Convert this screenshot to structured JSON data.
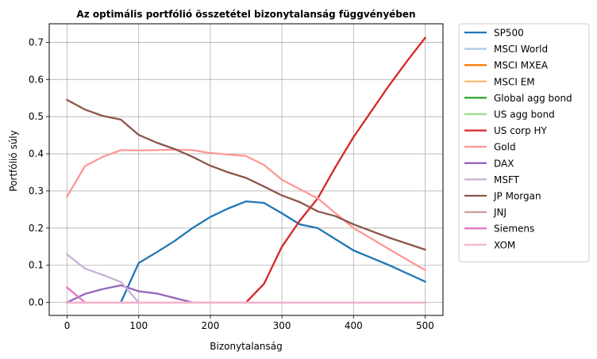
{
  "chart_data": {
    "type": "line",
    "title": "Az optimális portfólió összetétel bizonytalanság függvényében",
    "xlabel": "Bizonytalanság",
    "ylabel": "Portfólió súly",
    "xlim": [
      -25,
      525
    ],
    "ylim": [
      -0.035,
      0.75
    ],
    "xticks": [
      0,
      100,
      200,
      300,
      400,
      500
    ],
    "xtick_labels": [
      "0",
      "100",
      "200",
      "300",
      "400",
      "500"
    ],
    "yticks": [
      0.0,
      0.1,
      0.2,
      0.3,
      0.4,
      0.5,
      0.6,
      0.7
    ],
    "ytick_labels": [
      "0.0",
      "0.1",
      "0.2",
      "0.3",
      "0.4",
      "0.5",
      "0.6",
      "0.7"
    ],
    "grid": true,
    "legend_position": "outside-right",
    "x": [
      0,
      25,
      50,
      75,
      100,
      125,
      150,
      175,
      200,
      225,
      250,
      275,
      300,
      325,
      350,
      375,
      400,
      425,
      450,
      475,
      500
    ],
    "series": [
      {
        "name": "SP500",
        "color": "#1f77b4",
        "values": [
          0,
          0,
          0,
          0,
          0.106,
          0.135,
          0.165,
          0.2,
          0.23,
          0.253,
          0.272,
          0.268,
          0.24,
          0.21,
          0.2,
          0.17,
          0.14,
          0.12,
          0.1,
          0.078,
          0.056
        ]
      },
      {
        "name": "MSCI World",
        "color": "#aec7e8",
        "values": [
          0,
          0,
          0,
          0,
          0,
          0,
          0,
          0,
          0,
          0,
          0,
          0,
          0,
          0,
          0,
          0,
          0,
          0,
          0,
          0,
          0
        ]
      },
      {
        "name": "MSCI MXEA",
        "color": "#ff7f0e",
        "values": [
          0,
          0,
          0,
          0,
          0,
          0,
          0,
          0,
          0,
          0,
          0,
          0,
          0,
          0,
          0,
          0,
          0,
          0,
          0,
          0,
          0
        ]
      },
      {
        "name": "MSCI EM",
        "color": "#ffbb78",
        "values": [
          0,
          0,
          0,
          0,
          0,
          0,
          0,
          0,
          0,
          0,
          0,
          0,
          0,
          0,
          0,
          0,
          0,
          0,
          0,
          0,
          0
        ]
      },
      {
        "name": "Global agg bond",
        "color": "#2ca02c",
        "values": [
          0,
          0,
          0,
          0,
          0,
          0,
          0,
          0,
          0,
          0,
          0,
          0,
          0,
          0,
          0,
          0,
          0,
          0,
          0,
          0,
          0
        ]
      },
      {
        "name": "US agg bond",
        "color": "#98df8a",
        "values": [
          0,
          0,
          0,
          0,
          0,
          0,
          0,
          0,
          0,
          0,
          0,
          0,
          0,
          0,
          0,
          0,
          0,
          0,
          0,
          0,
          0
        ]
      },
      {
        "name": "US corp HY",
        "color": "#d62728",
        "values": [
          0,
          0,
          0,
          0,
          0,
          0,
          0,
          0,
          0,
          0,
          0,
          0.05,
          0.15,
          0.22,
          0.28,
          0.365,
          0.445,
          0.515,
          0.585,
          0.65,
          0.712
        ]
      },
      {
        "name": "Gold",
        "color": "#ff9896",
        "values": [
          0.285,
          0.367,
          0.392,
          0.41,
          0.409,
          0.41,
          0.411,
          0.41,
          0.402,
          0.398,
          0.394,
          0.37,
          0.33,
          0.305,
          0.28,
          0.24,
          0.2,
          0.172,
          0.143,
          0.115,
          0.087
        ]
      },
      {
        "name": "DAX",
        "color": "#9467bd",
        "values": [
          0,
          0.023,
          0.036,
          0.046,
          0.03,
          0.024,
          0.012,
          0,
          0,
          0,
          0,
          0,
          0,
          0,
          0,
          0,
          0,
          0,
          0,
          0,
          0
        ]
      },
      {
        "name": "MSFT",
        "color": "#c5b0d5",
        "values": [
          0.129,
          0.091,
          0.074,
          0.055,
          0,
          0,
          0,
          0,
          0,
          0,
          0,
          0,
          0,
          0,
          0,
          0,
          0,
          0,
          0,
          0,
          0
        ]
      },
      {
        "name": "JP Morgan",
        "color": "#8c564b",
        "values": [
          0.545,
          0.519,
          0.502,
          0.492,
          0.451,
          0.43,
          0.413,
          0.392,
          0.368,
          0.35,
          0.335,
          0.312,
          0.288,
          0.27,
          0.245,
          0.232,
          0.21,
          0.192,
          0.174,
          0.158,
          0.142
        ]
      },
      {
        "name": "JNJ",
        "color": "#c49c94",
        "values": [
          0,
          0,
          0,
          0,
          0,
          0,
          0,
          0,
          0,
          0,
          0,
          0,
          0,
          0,
          0,
          0,
          0,
          0,
          0,
          0,
          0
        ]
      },
      {
        "name": "Siemens",
        "color": "#e377c2",
        "values": [
          0.04,
          0,
          0,
          0,
          0,
          0,
          0,
          0,
          0,
          0,
          0,
          0,
          0,
          0,
          0,
          0,
          0,
          0,
          0,
          0,
          0
        ]
      },
      {
        "name": "XOM",
        "color": "#f7b6d2",
        "values": [
          0,
          0,
          0,
          0,
          0,
          0,
          0,
          0,
          0,
          0,
          0,
          0,
          0,
          0,
          0,
          0,
          0,
          0,
          0,
          0,
          0
        ]
      }
    ]
  }
}
